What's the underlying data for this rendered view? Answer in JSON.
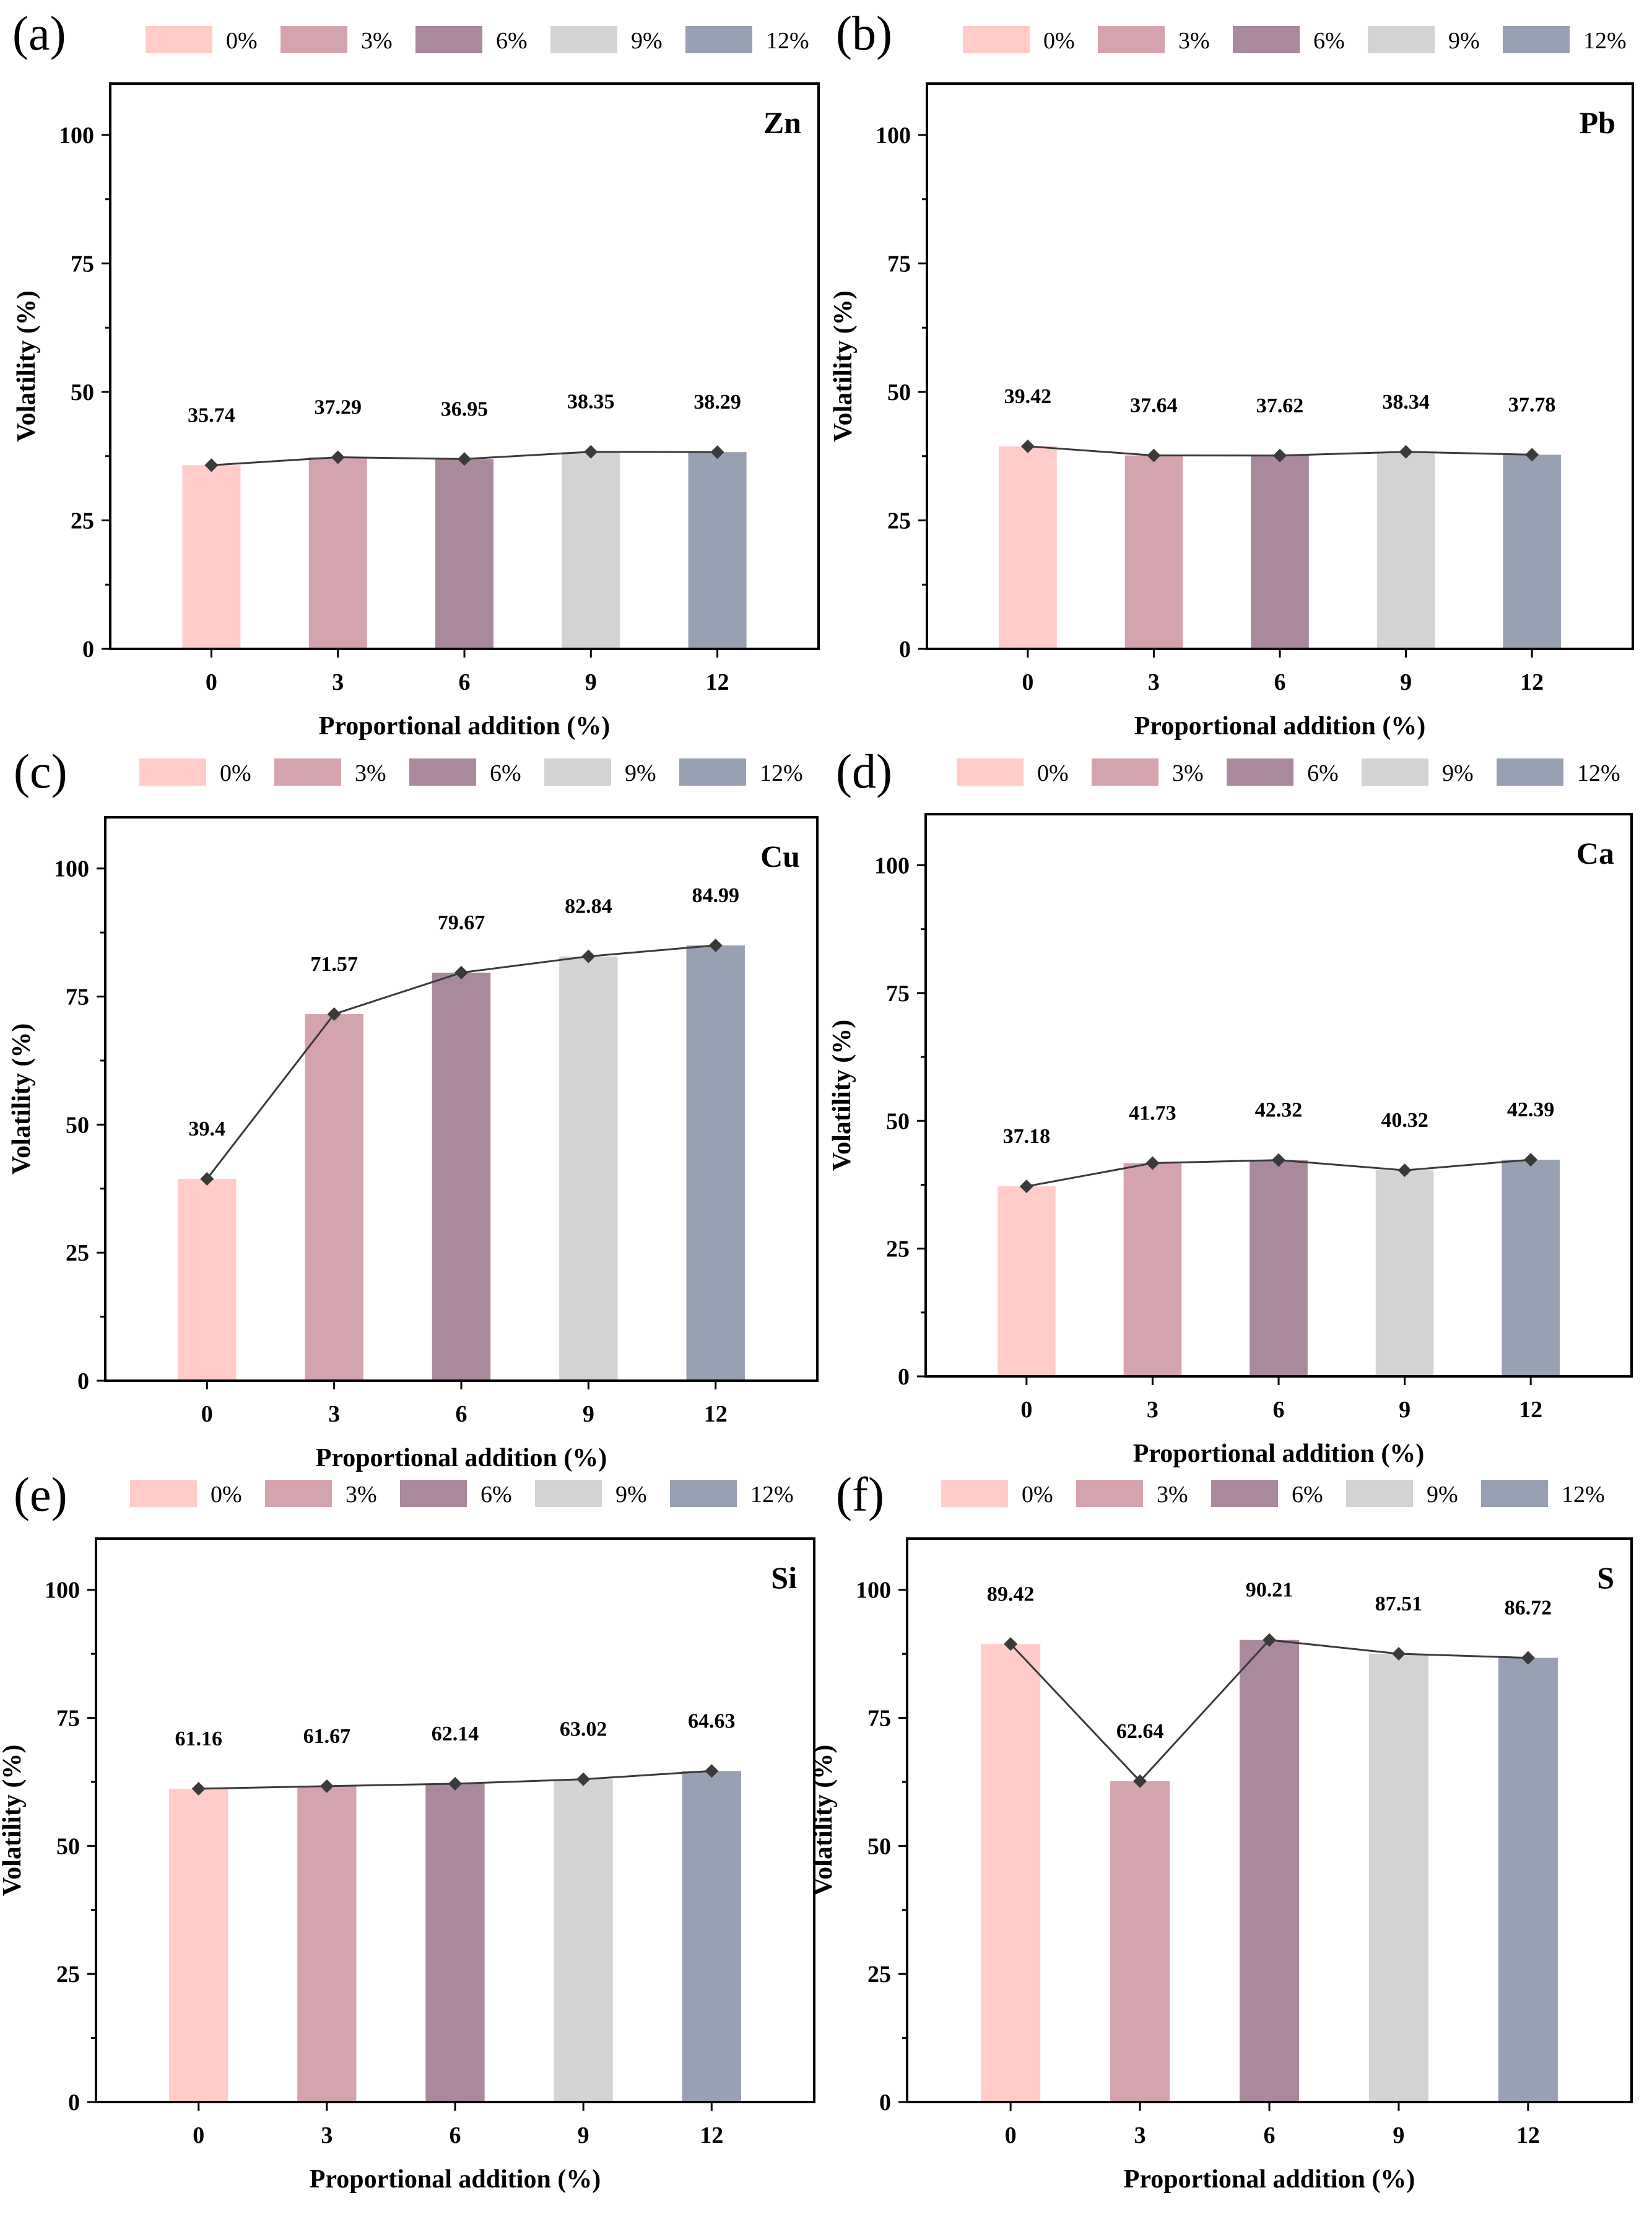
{
  "figure": {
    "legend": {
      "labels": [
        "0%",
        "3%",
        "6%",
        "9%",
        "12%"
      ],
      "colors": [
        "#FFCCC9",
        "#D5A3AE",
        "#A9899B",
        "#D3D3D3",
        "#97A1B2"
      ]
    },
    "line_color": "#3a3a3a",
    "marker_color": "#3a3a3a"
  },
  "chart_data": [
    {
      "type": "bar",
      "panel": "(a)",
      "element": "Zn",
      "categories": [
        "0",
        "3",
        "6",
        "9",
        "12"
      ],
      "values": [
        35.74,
        37.29,
        36.95,
        38.35,
        38.29
      ],
      "value_labels": [
        "35.74",
        "37.29",
        "36.95",
        "38.35",
        "38.29"
      ],
      "xlabel": "Proportional addition  (%)",
      "ylabel": "Volatility (%)",
      "ylim": [
        0,
        110
      ],
      "yticks": [
        0,
        25,
        50,
        75,
        100
      ],
      "overlay": "line-with-diamond-markers"
    },
    {
      "type": "bar",
      "panel": "(b)",
      "element": "Pb",
      "categories": [
        "0",
        "3",
        "6",
        "9",
        "12"
      ],
      "values": [
        39.42,
        37.64,
        37.62,
        38.34,
        37.78
      ],
      "value_labels": [
        "39.42",
        "37.64",
        "37.62",
        "38.34",
        "37.78"
      ],
      "xlabel": "Proportional addition  (%)",
      "ylabel": "Volatility (%)",
      "ylim": [
        0,
        110
      ],
      "yticks": [
        0,
        25,
        50,
        75,
        100
      ],
      "overlay": "line-with-diamond-markers"
    },
    {
      "type": "bar",
      "panel": "(c)",
      "element": "Cu",
      "categories": [
        "0",
        "3",
        "6",
        "9",
        "12"
      ],
      "values": [
        39.4,
        71.57,
        79.67,
        82.84,
        84.99
      ],
      "value_labels": [
        "39.4",
        "71.57",
        "79.67",
        "82.84",
        "84.99"
      ],
      "xlabel": "Proportional addition  (%)",
      "ylabel": "Volatility (%)",
      "ylim": [
        0,
        110
      ],
      "yticks": [
        0,
        25,
        50,
        75,
        100
      ],
      "overlay": "line-with-diamond-markers"
    },
    {
      "type": "bar",
      "panel": "(d)",
      "element": "Ca",
      "categories": [
        "0",
        "3",
        "6",
        "9",
        "12"
      ],
      "values": [
        37.18,
        41.73,
        42.32,
        40.32,
        42.39
      ],
      "value_labels": [
        "37.18",
        "41.73",
        "42.32",
        "40.32",
        "42.39"
      ],
      "xlabel": "Proportional addition  (%)",
      "ylabel": "Volatility (%)",
      "ylim": [
        0,
        110
      ],
      "yticks": [
        0,
        25,
        50,
        75,
        100
      ],
      "overlay": "line-with-diamond-markers"
    },
    {
      "type": "bar",
      "panel": "(e)",
      "element": "Si",
      "categories": [
        "0",
        "3",
        "6",
        "9",
        "12"
      ],
      "values": [
        61.16,
        61.67,
        62.14,
        63.02,
        64.63
      ],
      "value_labels": [
        "61.16",
        "61.67",
        "62.14",
        "63.02",
        "64.63"
      ],
      "xlabel": "Proportional addition  (%)",
      "ylabel": "Volatility (%)",
      "ylim": [
        0,
        110
      ],
      "yticks": [
        0,
        25,
        50,
        75,
        100
      ],
      "overlay": "line-with-diamond-markers"
    },
    {
      "type": "bar",
      "panel": "(f)",
      "element": "S",
      "categories": [
        "0",
        "3",
        "6",
        "9",
        "12"
      ],
      "values": [
        89.42,
        62.64,
        90.21,
        87.51,
        86.72
      ],
      "value_labels": [
        "89.42",
        "62.64",
        "90.21",
        "87.51",
        "86.72"
      ],
      "xlabel": "Proportional addition  (%)",
      "ylabel": "Volatility (%)",
      "ylim": [
        0,
        110
      ],
      "yticks": [
        0,
        25,
        50,
        75,
        100
      ],
      "overlay": "line-with-diamond-markers"
    }
  ]
}
